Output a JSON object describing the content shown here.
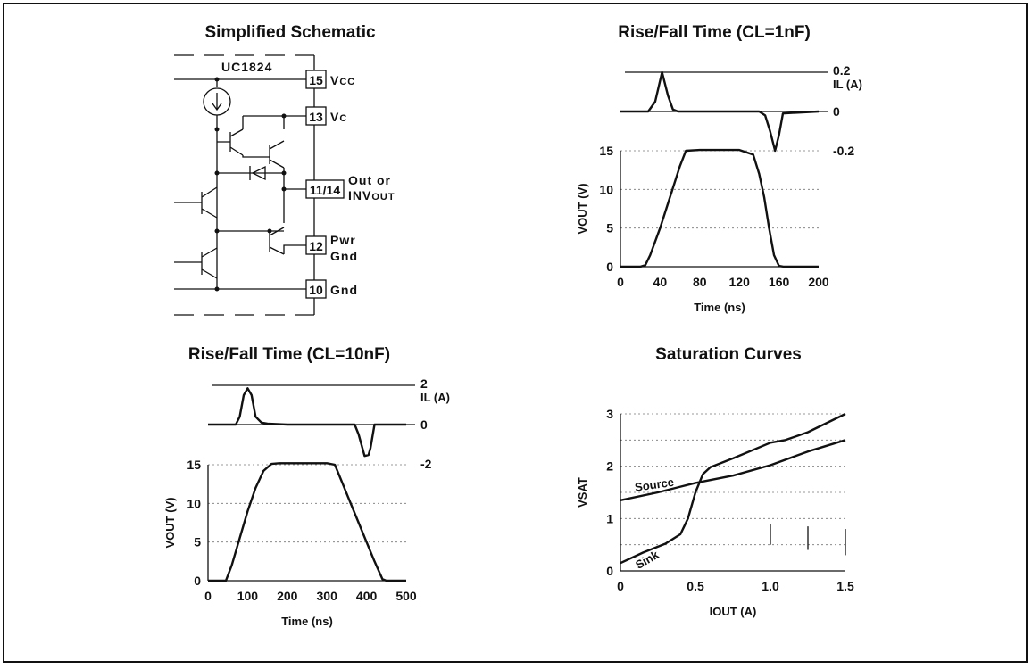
{
  "schematic": {
    "title": "Simplified Schematic",
    "chip": "UC1824",
    "pins": [
      {
        "num": "15",
        "label_html": "Vcc"
      },
      {
        "num": "13",
        "label_html": "Vc"
      },
      {
        "num": "11/14",
        "label_html": "Out  or INVout"
      },
      {
        "num": "12",
        "label_html": "Pwr Gnd"
      },
      {
        "num": "10",
        "label_html": "Gnd"
      }
    ]
  },
  "chart_data": [
    {
      "id": "rise_fall_1nF",
      "type": "line",
      "title": "Rise/Fall Time (CL=1nF)",
      "xlabel": "Time (ns)",
      "ylabel": "VOUT (V)",
      "xlim": [
        0,
        200
      ],
      "ylim": [
        0,
        15
      ],
      "xticks": [
        "0",
        "40",
        "80",
        "120",
        "160",
        "200"
      ],
      "yticks": [
        "0",
        "5",
        "10",
        "15"
      ],
      "current_axis": {
        "label": "IL (A)",
        "ticks": [
          "0.2",
          "0",
          "-0.2"
        ]
      },
      "series": [
        {
          "x": [
            0,
            20,
            25,
            30,
            40,
            50,
            60,
            66,
            80,
            120,
            134,
            140,
            145,
            150,
            155,
            160,
            165,
            200
          ],
          "y": [
            0,
            0,
            0.2,
            1.5,
            5,
            9,
            13,
            15,
            15.1,
            15.1,
            14.5,
            12,
            9,
            5,
            1.5,
            0.1,
            0,
            0
          ]
        },
        {
          "x": [
            0,
            28,
            35,
            42,
            48,
            53,
            58,
            140,
            146,
            151,
            156,
            160,
            164,
            200
          ],
          "y": [
            0,
            0,
            0.05,
            0.2,
            0.08,
            0.01,
            0,
            0,
            -0.02,
            -0.1,
            -0.2,
            -0.12,
            -0.01,
            0
          ]
        }
      ]
    },
    {
      "id": "rise_fall_10nF",
      "type": "line",
      "title": "Rise/Fall Time (CL=10nF)",
      "xlabel": "Time (ns)",
      "ylabel": "VOUT (V)",
      "xlim": [
        0,
        500
      ],
      "ylim": [
        0,
        15
      ],
      "xticks": [
        "0",
        "100",
        "200",
        "300",
        "400",
        "500"
      ],
      "yticks": [
        "0",
        "5",
        "10",
        "15"
      ],
      "current_axis": {
        "label": "IL (A)",
        "ticks": [
          "2",
          "0",
          "-2"
        ]
      },
      "series": [
        {
          "x": [
            0,
            45,
            60,
            80,
            100,
            120,
            140,
            160,
            180,
            300,
            320,
            340,
            360,
            380,
            400,
            420,
            440,
            450,
            500
          ],
          "y": [
            0,
            0,
            2,
            5.5,
            9,
            12,
            14.2,
            15.1,
            15.2,
            15.2,
            15,
            12.5,
            10,
            7.5,
            5,
            2.5,
            0.2,
            0,
            0
          ]
        },
        {
          "x": [
            0,
            70,
            80,
            90,
            100,
            110,
            120,
            135,
            150,
            180,
            200,
            370,
            380,
            395,
            405,
            410,
            420,
            440,
            500
          ],
          "y": [
            0,
            0,
            0.4,
            1.5,
            1.85,
            1.5,
            0.4,
            0.1,
            0.05,
            0.02,
            0,
            0,
            -0.5,
            -1.6,
            -1.55,
            -1.2,
            0,
            0,
            0
          ]
        }
      ]
    },
    {
      "id": "saturation",
      "type": "line",
      "title": "Saturation Curves",
      "xlabel": "IOUT (A)",
      "ylabel": "VSAT",
      "xlim": [
        0,
        1.5
      ],
      "ylim": [
        0,
        3
      ],
      "xticks": [
        "0",
        "0.5",
        "1.0",
        "1.5"
      ],
      "yticks": [
        "0",
        "1",
        "2",
        "3"
      ],
      "series": [
        {
          "name": "Source",
          "x": [
            0,
            0.25,
            0.5,
            0.75,
            1.0,
            1.25,
            1.5
          ],
          "y": [
            1.35,
            1.5,
            1.68,
            1.82,
            2.02,
            2.28,
            2.5
          ]
        },
        {
          "name": "Sink",
          "x": [
            0,
            0.15,
            0.3,
            0.4,
            0.45,
            0.5,
            0.55,
            0.6,
            0.75,
            1.0,
            1.1,
            1.25,
            1.5
          ],
          "y": [
            0.15,
            0.35,
            0.52,
            0.7,
            1.0,
            1.5,
            1.85,
            1.98,
            2.15,
            2.45,
            2.5,
            2.65,
            3.0
          ]
        }
      ]
    }
  ]
}
